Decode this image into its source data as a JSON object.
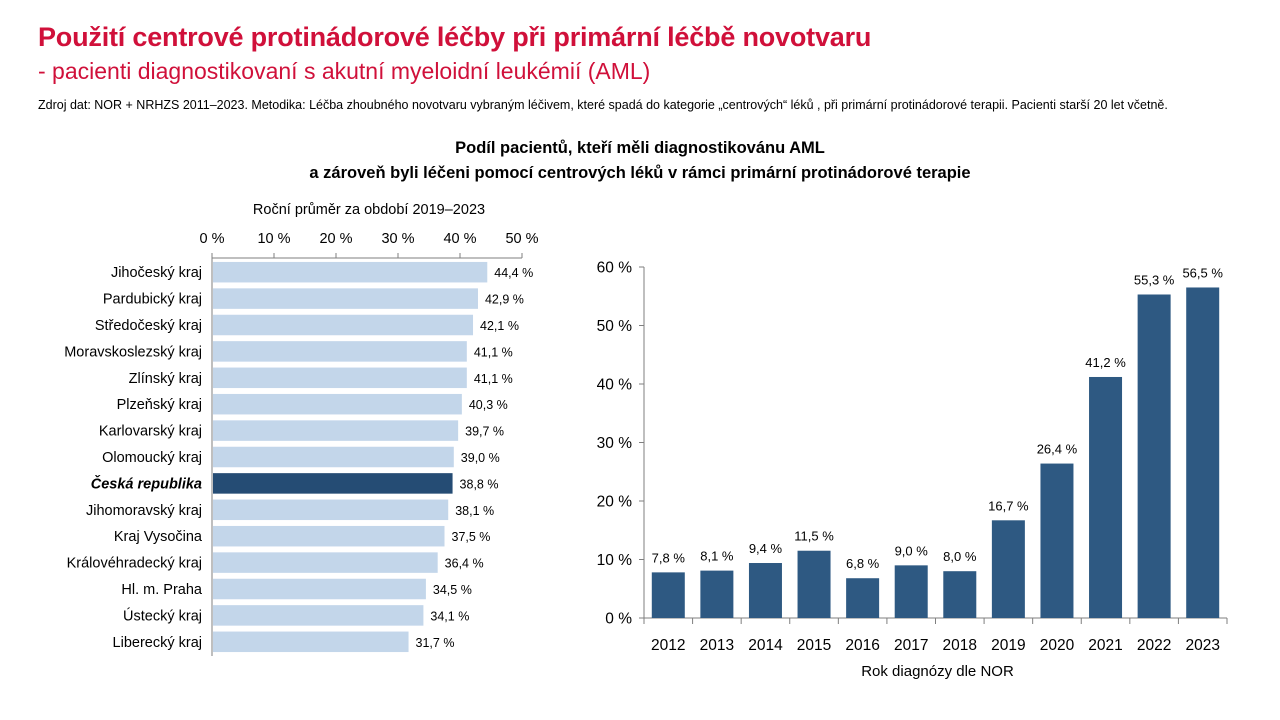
{
  "header": {
    "title": "Použití centrové protinádorové léčby při primární léčbě novotvaru",
    "subtitle": "- pacienti diagnostikovaní s akutní myeloidní leukémií (AML)",
    "source_note": "Zdroj dat: NOR + NRHZS 2011–2023. Metodika: Léčba zhoubného novotvaru vybraným léčivem, které spadá do kategorie „centrových“ léků , při primární protinádorové terapii. Pacienti starší 20 let včetně."
  },
  "figure_title_line1": "Podíl pacientů, kteří měli diagnostikovánu AML",
  "figure_title_line2": "a zároveň byli léčeni pomocí centrových léků v rámci primární protinádorové terapie",
  "colors": {
    "title": "#d0103a",
    "region_bar": "#c3d6ea",
    "national_bar": "#254c74",
    "year_bar": "#2e5982"
  },
  "chart_data": [
    {
      "type": "bar",
      "orientation": "horizontal",
      "title": "Roční průměr za období 2019–2023",
      "categories": [
        "Jihočeský kraj",
        "Pardubický kraj",
        "Středočeský kraj",
        "Moravskoslezský kraj",
        "Zlínský kraj",
        "Plzeňský kraj",
        "Karlovarský kraj",
        "Olomoucký kraj",
        "Česká republika",
        "Jihomoravský kraj",
        "Kraj Vysočina",
        "Královéhradecký kraj",
        "Hl. m. Praha",
        "Ústecký kraj",
        "Liberecký kraj"
      ],
      "values": [
        44.4,
        42.9,
        42.1,
        41.1,
        41.1,
        40.3,
        39.7,
        39.0,
        38.8,
        38.1,
        37.5,
        36.4,
        34.5,
        34.1,
        31.7
      ],
      "data_labels": [
        "44,4 %",
        "42,9 %",
        "42,1 %",
        "41,1 %",
        "41,1 %",
        "40,3 %",
        "39,7 %",
        "39,0 %",
        "38,8 %",
        "38,1 %",
        "37,5 %",
        "36,4 %",
        "34,5 %",
        "34,1 %",
        "31,7 %"
      ],
      "highlight_category": "Česká republika",
      "xlim": [
        0,
        50
      ],
      "ticks": [
        0,
        10,
        20,
        30,
        40,
        50
      ],
      "tick_labels": [
        "0 %",
        "10 %",
        "20 %",
        "30 %",
        "40 %",
        "50 %"
      ],
      "axis_position": "top",
      "grid": false
    },
    {
      "type": "bar",
      "orientation": "vertical",
      "categories": [
        "2012",
        "2013",
        "2014",
        "2015",
        "2016",
        "2017",
        "2018",
        "2019",
        "2020",
        "2021",
        "2022",
        "2023"
      ],
      "values": [
        7.8,
        8.1,
        9.4,
        11.5,
        6.8,
        9.0,
        8.0,
        16.7,
        26.4,
        41.2,
        55.3,
        56.5
      ],
      "data_labels": [
        "7,8 %",
        "8,1 %",
        "9,4 %",
        "11,5 %",
        "6,8 %",
        "9,0 %",
        "8,0 %",
        "16,7 %",
        "26,4 %",
        "41,2 %",
        "55,3 %",
        "56,5 %"
      ],
      "xlabel": "Rok diagnózy dle NOR",
      "ylim": [
        0,
        60
      ],
      "ticks": [
        0,
        10,
        20,
        30,
        40,
        50,
        60
      ],
      "tick_labels": [
        "0 %",
        "10 %",
        "20 %",
        "30 %",
        "40 %",
        "50 %",
        "60 %"
      ],
      "grid": false
    }
  ]
}
